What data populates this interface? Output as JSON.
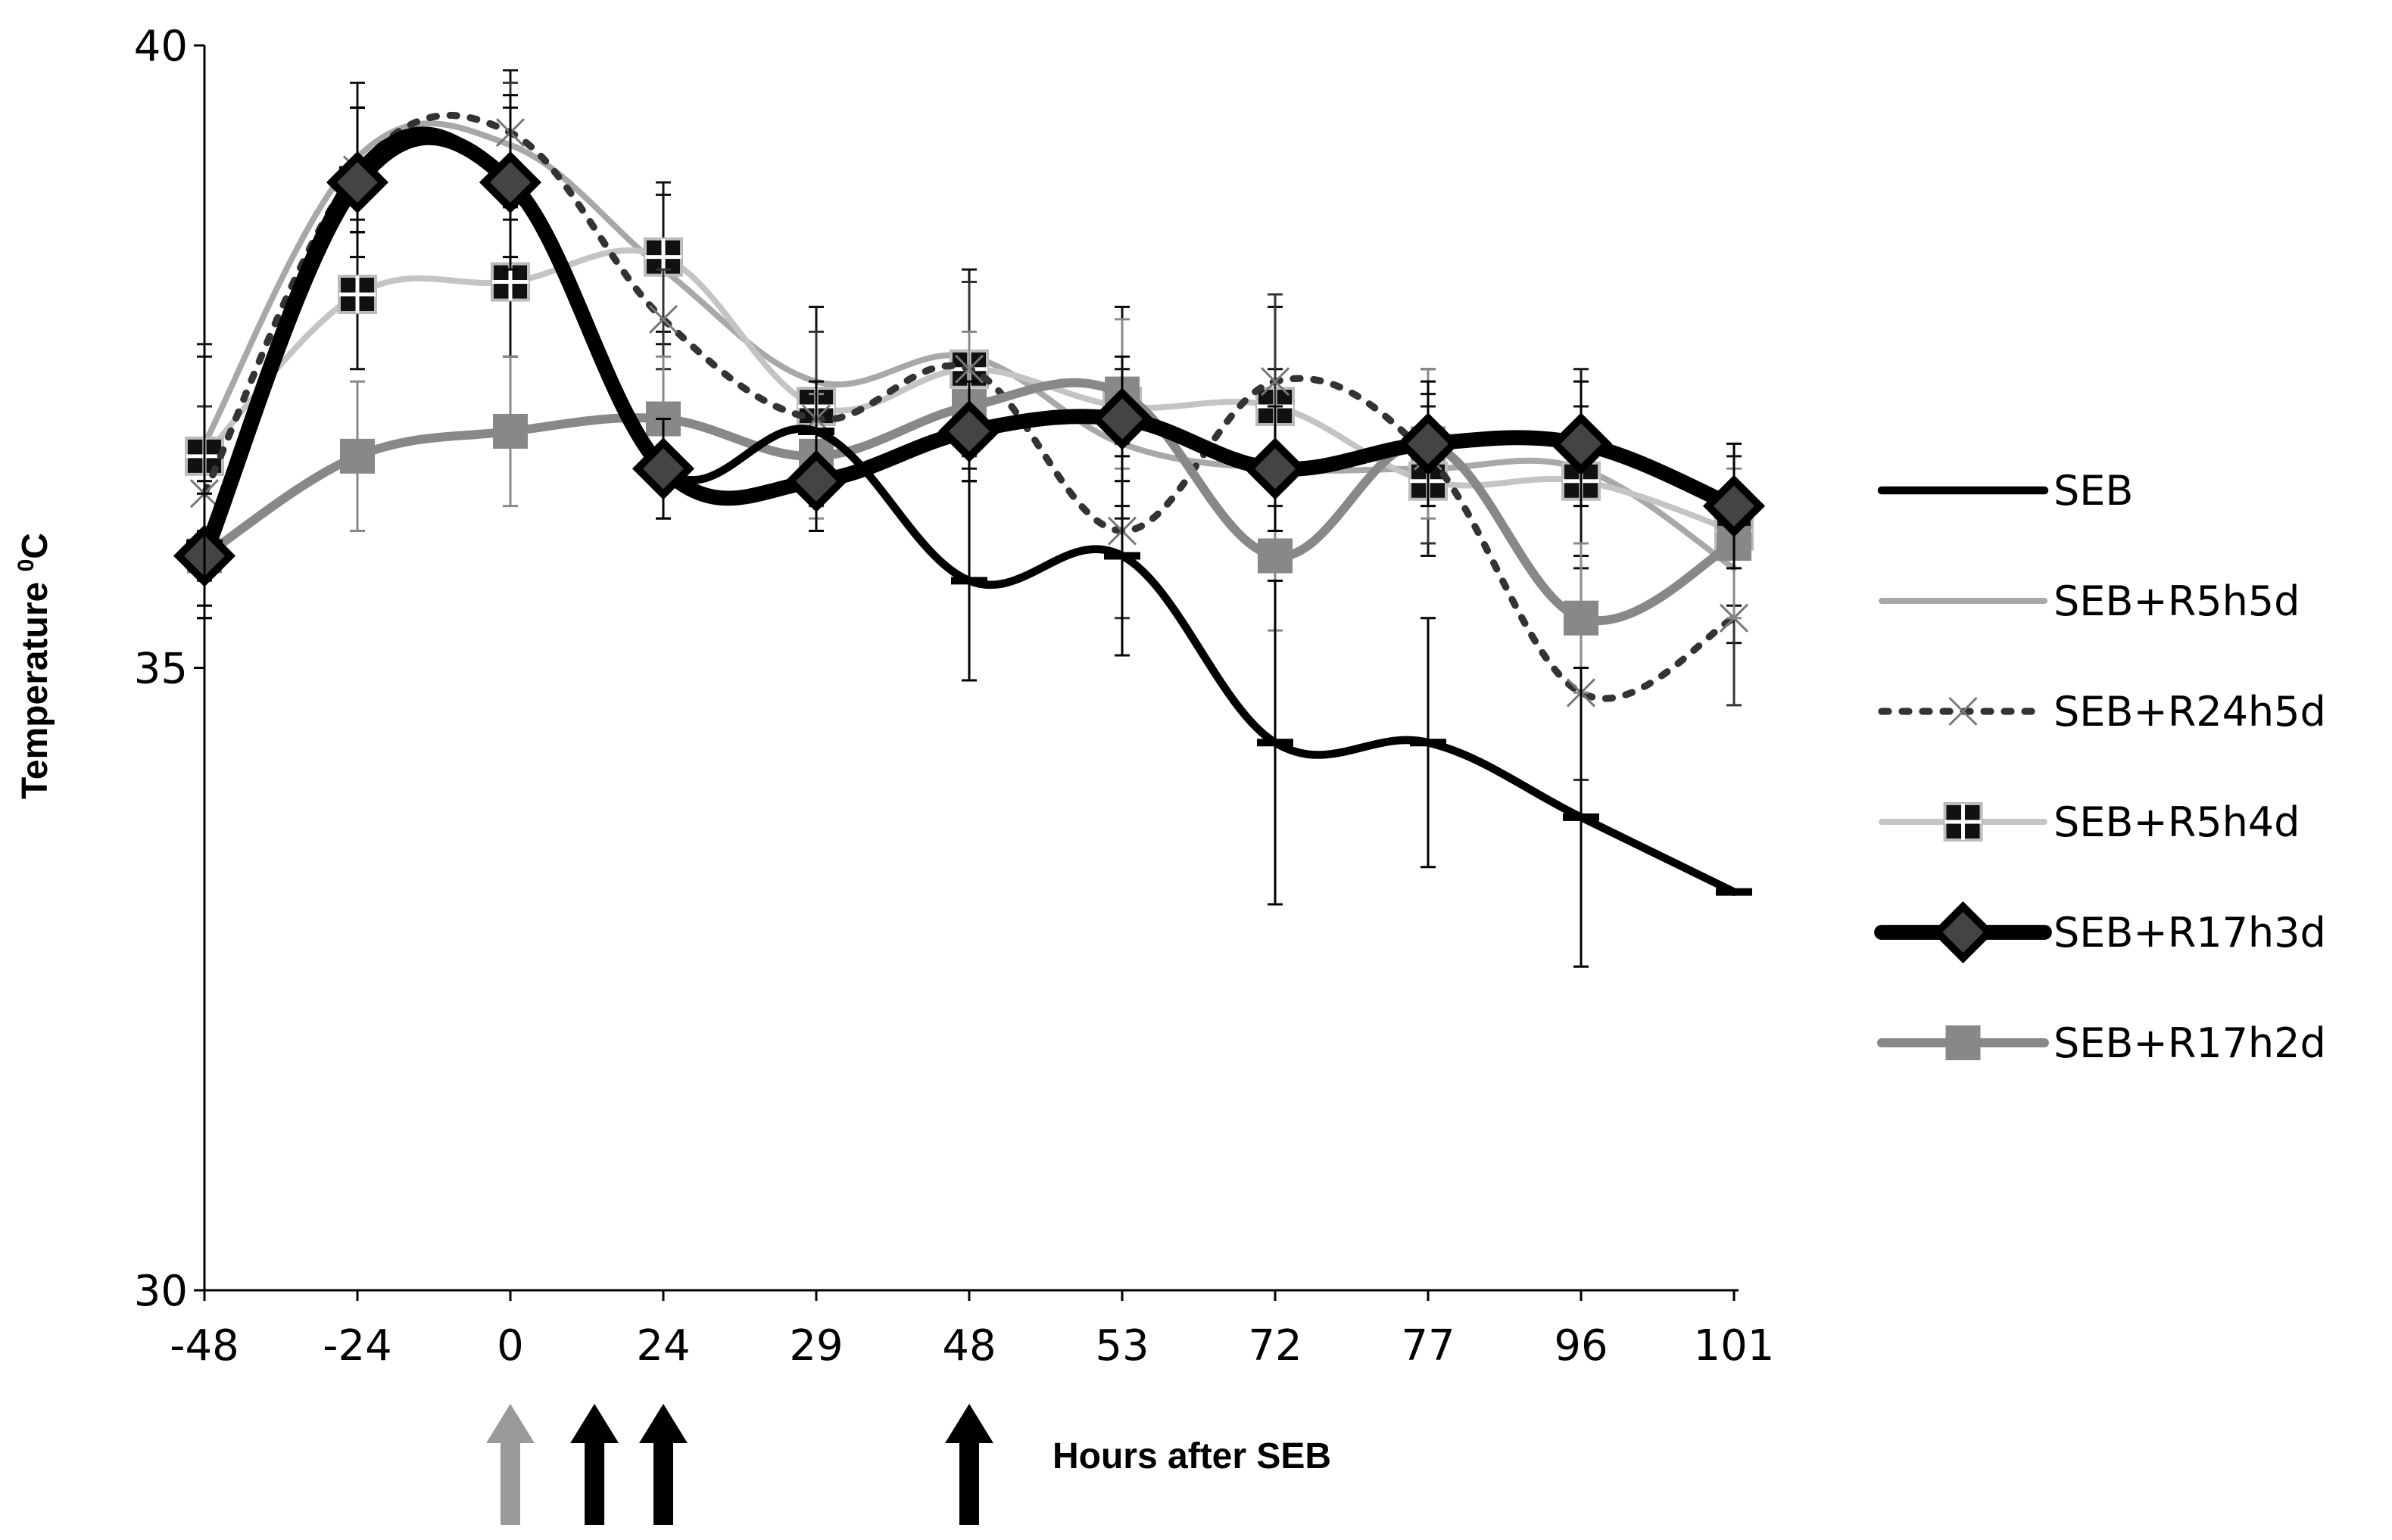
{
  "chart_data": {
    "type": "line",
    "title": "",
    "xlabel": "Hours after SEB",
    "ylabel": "Temperature ⁰C",
    "ylabel_main": "Temperature ",
    "ylabel_sup": "0",
    "ylabel_unit": "C",
    "ylim": [
      30,
      40
    ],
    "yticks": [
      "30",
      "35",
      "40"
    ],
    "categories": [
      "-48",
      "-24",
      "0",
      "24",
      "29",
      "48",
      "53",
      "72",
      "77",
      "96",
      "101"
    ],
    "arrows": [
      {
        "category": "0",
        "offset": 0,
        "color": "#9a9a9a",
        "meaning": "SEB"
      },
      {
        "category": "24",
        "offset": -0.45,
        "color": "#000000",
        "meaning": "treatment"
      },
      {
        "category": "24",
        "offset": 0,
        "color": "#000000",
        "meaning": "treatment"
      },
      {
        "category": "48",
        "offset": 0,
        "color": "#000000",
        "meaning": "treatment"
      }
    ],
    "series": [
      {
        "name": "SEB",
        "color": "#000000",
        "dash": "",
        "width": 1.6,
        "marker": "dash",
        "values": [
          36.0,
          39.0,
          38.9,
          36.6,
          36.9,
          35.7,
          35.9,
          34.4,
          34.4,
          33.8,
          33.2
        ],
        "errors": [
          0.5,
          0.5,
          0.7,
          0.4,
          0.4,
          0.8,
          0.8,
          1.3,
          1.0,
          1.2,
          0.0
        ]
      },
      {
        "name": "SEB+R5h5d",
        "color": "#a8a8a8",
        "dash": "",
        "width": 1.2,
        "marker": "none",
        "values": [
          36.8,
          39.1,
          39.2,
          38.2,
          37.3,
          37.5,
          36.8,
          36.6,
          36.6,
          36.6,
          35.8
        ],
        "errors": [
          0.7,
          0.6,
          0.6,
          0.6,
          0.6,
          0.6,
          0.6,
          0.8,
          0.6,
          0.8,
          0.6
        ]
      },
      {
        "name": "SEB+R24h5d",
        "color": "#333333",
        "dash": "3 6",
        "width": 1.4,
        "marker": "x",
        "values": [
          36.4,
          39.0,
          39.3,
          37.8,
          37.0,
          37.4,
          36.1,
          37.3,
          36.7,
          34.8,
          35.4
        ],
        "errors": [
          0.7,
          0.5,
          0.4,
          0.4,
          0.7,
          0.7,
          0.7,
          0.7,
          0.7,
          0.7,
          0.7
        ]
      },
      {
        "name": "SEB+R5h4d",
        "color": "#c4c4c4",
        "dash": "",
        "width": 1.2,
        "marker": "square-cross",
        "values": [
          36.7,
          38.0,
          38.1,
          38.3,
          37.1,
          37.4,
          37.1,
          37.1,
          36.5,
          36.5,
          36.1
        ],
        "errors": [
          0.9,
          0.6,
          0.6,
          0.6,
          0.8,
          0.8,
          0.8,
          0.8,
          0.6,
          0.6,
          0.6
        ]
      },
      {
        "name": "SEB+R17h3d",
        "color": "#000000",
        "dash": "",
        "width": 3.0,
        "marker": "diamond",
        "values": [
          35.9,
          38.9,
          38.9,
          36.6,
          36.5,
          36.9,
          37.0,
          36.6,
          36.8,
          36.8,
          36.3
        ],
        "errors": [
          0.5,
          0.6,
          0.6,
          0.4,
          0.4,
          0.4,
          0.5,
          0.5,
          0.5,
          0.5,
          0.5
        ]
      },
      {
        "name": "SEB+R17h2d",
        "color": "#888888",
        "dash": "",
        "width": 1.8,
        "marker": "square",
        "values": [
          35.9,
          36.7,
          36.9,
          37.0,
          36.7,
          37.1,
          37.2,
          35.9,
          36.8,
          35.4,
          36.0
        ],
        "errors": [
          0.5,
          0.6,
          0.6,
          0.5,
          0.5,
          0.6,
          0.6,
          0.6,
          0.6,
          0.6,
          0.6
        ]
      }
    ]
  }
}
